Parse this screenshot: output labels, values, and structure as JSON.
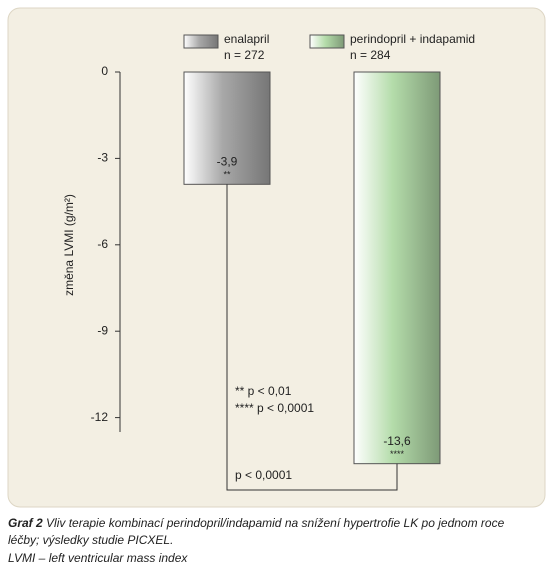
{
  "chart_data": {
    "type": "bar",
    "y_label": "změna LVMI (g/m²)",
    "ylim": [
      0,
      -12.5
    ],
    "yticks": [
      0,
      -3,
      -6,
      -9,
      -12
    ],
    "series": [
      {
        "name": "enalapril",
        "n": "n = 272",
        "color": "#a8a8a8",
        "values": [
          -3.9
        ],
        "value_labels": [
          "-3,9"
        ],
        "significance": "**"
      },
      {
        "name": "perindopril + indapamid",
        "n": "n = 284",
        "color": "#b4dcaa",
        "values": [
          -13.6
        ],
        "value_labels": [
          "-13,6"
        ],
        "significance": "****"
      }
    ],
    "annotations": [
      "** p < 0,01",
      "**** p < 0,0001"
    ],
    "comparison_label": "p < 0,0001",
    "caption_label": "Graf 2",
    "caption": "Vliv terapie kombinací perindopril/indapamid na snížení hypertrofie LK po jednom roce léčby; výsledky studie PICXEL.",
    "footnote": "LVMI – left ventricular mass index"
  }
}
